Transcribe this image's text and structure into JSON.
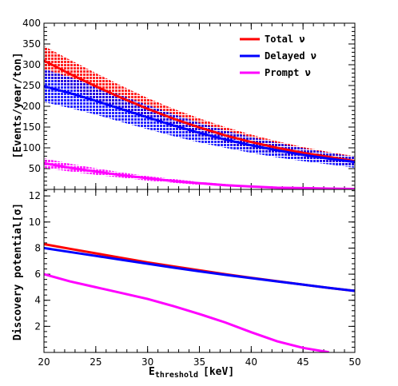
{
  "chart_data": [
    {
      "type": "area",
      "ylabel": "[Events/year/ton]",
      "xlim": [
        20,
        50
      ],
      "ylim": [
        0,
        400
      ],
      "x_ticks": [
        20,
        25,
        30,
        35,
        40,
        45,
        50
      ],
      "y_ticks": [
        50,
        100,
        150,
        200,
        250,
        300,
        350,
        400
      ],
      "legend_position": "top-right",
      "x": [
        20,
        22.5,
        25,
        27.5,
        30,
        32.5,
        35,
        37.5,
        40,
        42.5,
        45,
        47.5,
        50
      ],
      "series": [
        {
          "name": "Total ν",
          "color": "#ff0000",
          "central": [
            310,
            278,
            248,
            220,
            194,
            170,
            149,
            130,
            114,
            100,
            88,
            78,
            68
          ],
          "upper": [
            345,
            312,
            280,
            249,
            220,
            194,
            171,
            150,
            132,
            116,
            102,
            90,
            80
          ],
          "lower": [
            275,
            245,
            217,
            192,
            170,
            148,
            128,
            111,
            97,
            85,
            75,
            66,
            57
          ]
        },
        {
          "name": "Delayed ν",
          "color": "#0000ff",
          "central": [
            248,
            232,
            213,
            193,
            173,
            154,
            136,
            120,
            106,
            94,
            83,
            74,
            66
          ],
          "upper": [
            290,
            270,
            248,
            226,
            203,
            181,
            160,
            142,
            126,
            112,
            99,
            88,
            78
          ],
          "lower": [
            210,
            196,
            180,
            162,
            145,
            128,
            113,
            100,
            88,
            77,
            68,
            60,
            52
          ]
        },
        {
          "name": "Prompt ν",
          "color": "#ff00ff",
          "central": [
            63,
            52,
            43,
            34,
            27,
            20,
            15,
            10,
            7,
            4,
            3,
            2,
            1
          ],
          "upper": [
            75,
            62,
            51,
            41,
            32,
            25,
            18,
            13,
            9,
            6,
            4,
            2,
            1
          ],
          "lower": [
            52,
            43,
            35,
            28,
            21,
            16,
            11,
            8,
            5,
            3,
            2,
            1,
            0
          ]
        }
      ]
    },
    {
      "type": "line",
      "xlabel": "E",
      "xlabel_sub": "threshold",
      "xlabel_unit": "[keV]",
      "ylabel": "Discovery potential[σ]",
      "xlim": [
        20,
        50
      ],
      "ylim": [
        0,
        12.5
      ],
      "x_ticks": [
        20,
        25,
        30,
        35,
        40,
        45,
        50
      ],
      "y_ticks": [
        2,
        4,
        6,
        8,
        10,
        12
      ],
      "x": [
        20,
        22.5,
        25,
        27.5,
        30,
        32.5,
        35,
        37.5,
        40,
        42.5,
        45,
        47.5,
        50
      ],
      "series": [
        {
          "name": "Total ν",
          "color": "#ff0000",
          "values": [
            8.3,
            7.95,
            7.6,
            7.25,
            6.9,
            6.6,
            6.3,
            6.0,
            5.72,
            5.46,
            5.2,
            4.95,
            4.72
          ]
        },
        {
          "name": "Delayed ν",
          "color": "#0000ff",
          "values": [
            8.0,
            7.7,
            7.4,
            7.1,
            6.8,
            6.5,
            6.22,
            5.95,
            5.7,
            5.45,
            5.2,
            4.95,
            4.72
          ]
        },
        {
          "name": "Prompt ν",
          "color": "#ff00ff",
          "values": [
            6.0,
            5.45,
            5.0,
            4.55,
            4.1,
            3.55,
            2.95,
            2.3,
            1.55,
            0.85,
            0.35,
            0.02,
            null
          ]
        }
      ]
    }
  ]
}
